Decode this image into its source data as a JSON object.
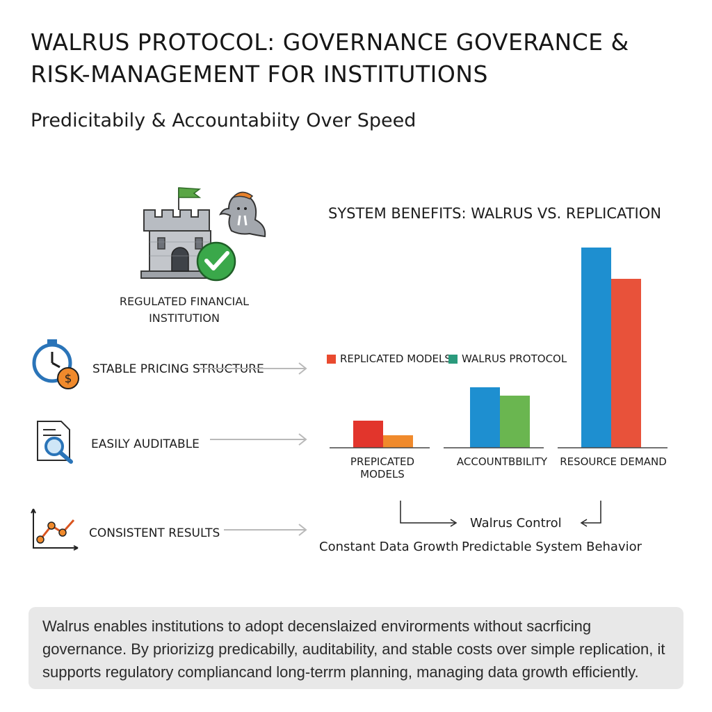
{
  "header": {
    "title": "WALRUS PROTOCOL: GOVERNANCE GOVERANCE & RISK-MANAGEMENT FOR INSTITUTIONS",
    "subtitle": "Predicitabily & Accountabiity Over Speed"
  },
  "institution": {
    "label": "REGULATED FINANCIAL INSTITUTION",
    "icons": [
      "castle-icon",
      "flag-icon",
      "walrus-mascot-icon",
      "checkmark-badge-icon"
    ]
  },
  "benefits": [
    {
      "label": "STABLE PRICING STRUCTURE",
      "icon": "stopwatch-dollar-icon"
    },
    {
      "label": "EASILY AUDITABLE",
      "icon": "document-magnifier-icon"
    },
    {
      "label": "CONSISTENT RESULTS",
      "icon": "line-chart-icon"
    }
  ],
  "colors": {
    "red": "#e2352c",
    "orange": "#f08a2c",
    "blue": "#1e8fd0",
    "green": "#6ab650",
    "summary_bg": "#e8e8e8"
  },
  "chart_data": {
    "type": "bar",
    "title": "SYSTEM BENEFITS: WALRUS VS. REPLICATION",
    "legend": [
      {
        "name": "REPLICATED MODELS",
        "color": "#e94a2f"
      },
      {
        "name": "WALRUS PROTOCOL",
        "color": "#2a9a7c"
      }
    ],
    "categories": [
      "PREPICATED MODELS",
      "ACCOUNTBBILITY",
      "RESOURCE DEMAND"
    ],
    "series": [
      {
        "name": "REPLICATED MODELS",
        "values": [
          13,
          29,
          96
        ],
        "colors": [
          "#e2352c",
          "#1e8fd0",
          "#1e8fd0"
        ]
      },
      {
        "name": "WALRUS PROTOCOL",
        "values": [
          6,
          25,
          81
        ],
        "colors": [
          "#f08a2c",
          "#6ab650",
          "#e8523a"
        ]
      }
    ],
    "ylim": [
      0,
      100
    ],
    "grid": false
  },
  "flow": {
    "center": "Walrus Control",
    "left": "Constant Data Growth",
    "right": "Predictable System Behavior"
  },
  "summary": {
    "text": "Walrus enables institutions to adopt decenslaized envirorments without sacrficing governance. By priorizizg predicabilly, auditability, and stable costs over simple replication, it supports regulatory compliancand long-terrm planning, managing data growth efficiently."
  }
}
